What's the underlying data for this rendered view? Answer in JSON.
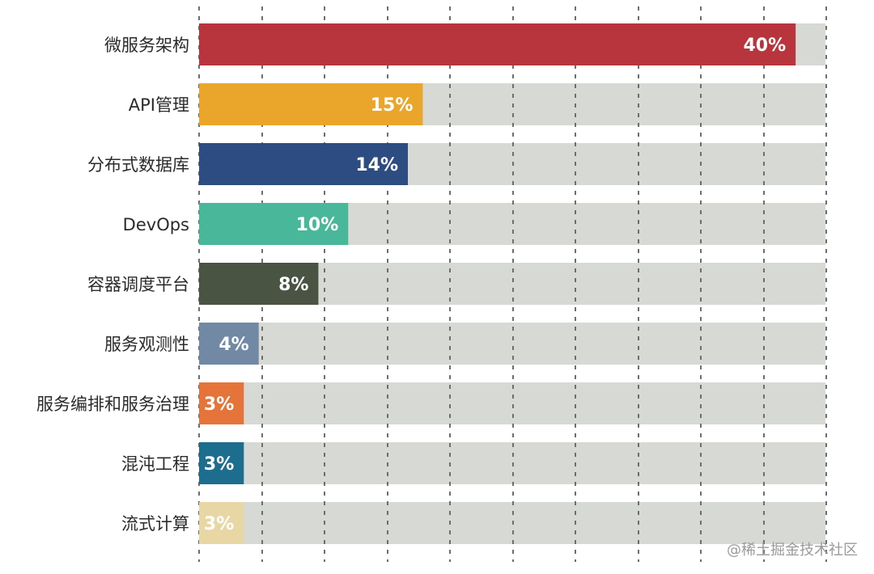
{
  "chart_data": {
    "type": "bar",
    "orientation": "horizontal",
    "categories": [
      "微服务架构",
      "API管理",
      "分布式数据库",
      "DevOps",
      "容器调度平台",
      "服务观测性",
      "服务编排和服务治理",
      "混沌工程",
      "流式计算"
    ],
    "values": [
      40,
      15,
      14,
      10,
      8,
      4,
      3,
      3,
      3
    ],
    "value_labels": [
      "40%",
      "15%",
      "14%",
      "10%",
      "8%",
      "4%",
      "3%",
      "3%",
      "3%"
    ],
    "colors": [
      "#b8353d",
      "#e9a62a",
      "#2d4c82",
      "#49b89a",
      "#4a5443",
      "#7289a6",
      "#e4743a",
      "#1d6e8e",
      "#e8d7a4"
    ],
    "xlim": [
      0,
      42
    ],
    "grid": true
  },
  "watermark": "@稀土掘金技术社区"
}
